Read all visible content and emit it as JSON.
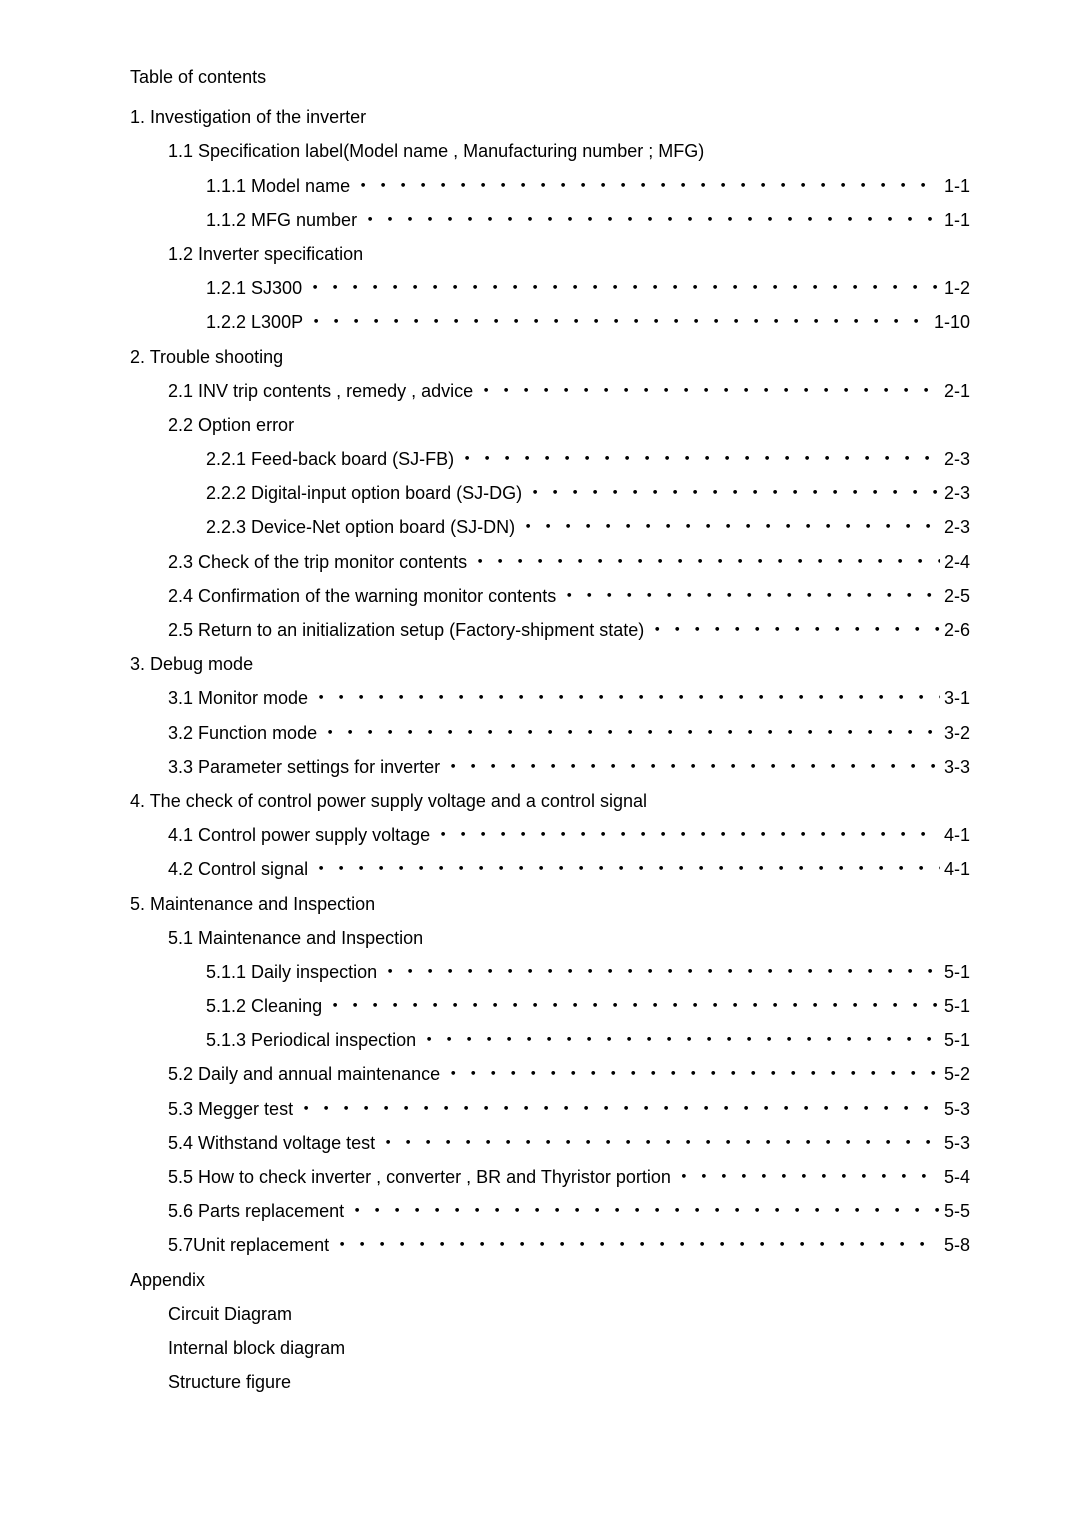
{
  "title": "Table of contents",
  "dots": "・・・・・・・・・・・・・・・・・・・・・・・・・・・・・・・・・・・・・・・・・・・・・・・・・・・・・・・・・・・・・・・・・・・・・・・・・・・・・・・・・・・・・・・・・・・・・・・・・・・・・・・・・・・・・・・・・・・・・・・・",
  "sections": [
    {
      "heading": "1. Investigation of the inverter",
      "items": [
        {
          "level": 1,
          "label": "1.1 Specification label(Model name , Manufacturing number ; MFG)"
        },
        {
          "level": 2,
          "label": "1.1.1 Model name",
          "page": "1-1",
          "dots": true
        },
        {
          "level": 2,
          "label": "1.1.2 MFG number",
          "page": "1-1",
          "dots": true
        },
        {
          "level": 1,
          "label": "1.2 Inverter specification"
        },
        {
          "level": 2,
          "label": "1.2.1 SJ300   ",
          "page": "1-2",
          "dots": true
        },
        {
          "level": 2,
          "label": "1.2.2 L300P",
          "page": "1-10",
          "dots": true
        }
      ]
    },
    {
      "heading": "2. Trouble shooting",
      "items": [
        {
          "level": 1,
          "label": "2.1 INV trip contents , remedy , advice",
          "page": "2-1",
          "dots": true
        },
        {
          "level": 1,
          "label": "2.2 Option error"
        },
        {
          "level": 2,
          "label": "2.2.1 Feed-back board (SJ-FB)",
          "page": "2-3",
          "dots": true
        },
        {
          "level": 2,
          "label": "2.2.2 Digital-input option board (SJ-DG)",
          "page": "2-3",
          "dots": true
        },
        {
          "level": 2,
          "label": "2.2.3 Device-Net option board (SJ-DN)",
          "page": "2-3",
          "dots": true
        },
        {
          "level": 1,
          "label": "2.3 Check of the trip monitor contents",
          "page": "2-4",
          "dots": true
        },
        {
          "level": 1,
          "label": "2.4 Confirmation of the warning monitor contents",
          "page": "2-5",
          "dots": true
        },
        {
          "level": 1,
          "label": "2.5 Return to an initialization setup (Factory-shipment state)",
          "page": "2-6",
          "dots": true
        }
      ]
    },
    {
      "heading": "3. Debug mode",
      "items": [
        {
          "level": 1,
          "label": "3.1 Monitor mode",
          "page": "3-1",
          "dots": true
        },
        {
          "level": 1,
          "label": "3.2 Function mode",
          "page": "3-2",
          "dots": true
        },
        {
          "level": 1,
          "label": "3.3 Parameter settings for inverter",
          "page": "3-3",
          "dots": true
        }
      ]
    },
    {
      "heading": "4. The check of control power supply voltage and a control signal",
      "items": [
        {
          "level": 1,
          "label": "4.1 Control power supply voltage",
          "page": "4-1",
          "dots": true
        },
        {
          "level": 1,
          "label": "4.2 Control signal",
          "page": "4-1",
          "dots": true
        }
      ]
    },
    {
      "heading": "5. Maintenance and Inspection",
      "items": [
        {
          "level": 1,
          "label": "5.1 Maintenance and Inspection"
        },
        {
          "level": 2,
          "label": "5.1.1  Daily inspection",
          "page": "5-1",
          "dots": true
        },
        {
          "level": 2,
          "label": "5.1.2  Cleaning",
          "page": "5-1",
          "dots": true
        },
        {
          "level": 2,
          "label": "5.1.3  Periodical inspection ",
          "page": "5-1",
          "dots": true
        },
        {
          "level": 1,
          "label": "5.2 Daily and annual maintenance",
          "page": "5-2",
          "dots": true
        },
        {
          "level": 1,
          "label": "5.3 Megger test",
          "page": "5-3",
          "dots": true
        },
        {
          "level": 1,
          "label": "5.4 Withstand voltage test",
          "page": "5-3",
          "dots": true
        },
        {
          "level": 1,
          "label": "5.5 How to check inverter , converter , BR and Thyristor portion",
          "page": "5-4",
          "dots": true
        },
        {
          "level": 1,
          "label": "5.6 Parts replacement",
          "page": "5-5",
          "dots": true
        },
        {
          "level": 1,
          "label": "5.7Unit replacement",
          "page": "5-8",
          "dots": true
        }
      ]
    },
    {
      "heading": "Appendix",
      "items": [
        {
          "level": 1,
          "label": "Circuit Diagram"
        },
        {
          "level": 1,
          "label": "Internal block diagram"
        },
        {
          "level": 1,
          "label": "Structure figure"
        }
      ]
    }
  ]
}
